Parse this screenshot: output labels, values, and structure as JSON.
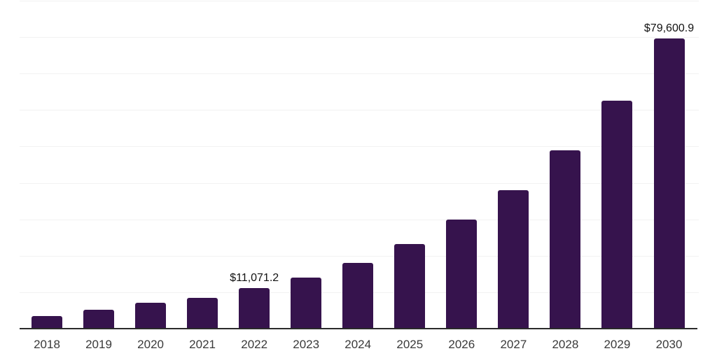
{
  "chart_data": {
    "type": "bar",
    "title": "",
    "xlabel": "",
    "ylabel": "",
    "categories": [
      "2018",
      "2019",
      "2020",
      "2021",
      "2022",
      "2023",
      "2024",
      "2025",
      "2026",
      "2027",
      "2028",
      "2029",
      "2030"
    ],
    "values": [
      3500,
      5250,
      7100,
      8500,
      11071.2,
      14100,
      18050,
      23200,
      30000,
      38100,
      48900,
      62600,
      79600.9
    ],
    "value_labels": {
      "2022": "$11,071.2",
      "2030": "$79,600.9"
    },
    "ylim": [
      0,
      90000
    ],
    "gridline_step": 10000,
    "grid": "horizontal",
    "legend": "none",
    "colors": {
      "bar": "#36134d",
      "axis_line": "#2b2b2b",
      "gridline": "#f2f2f2",
      "tick_label": "#3a3a3a",
      "value_label": "#111111",
      "background": "#ffffff"
    }
  }
}
